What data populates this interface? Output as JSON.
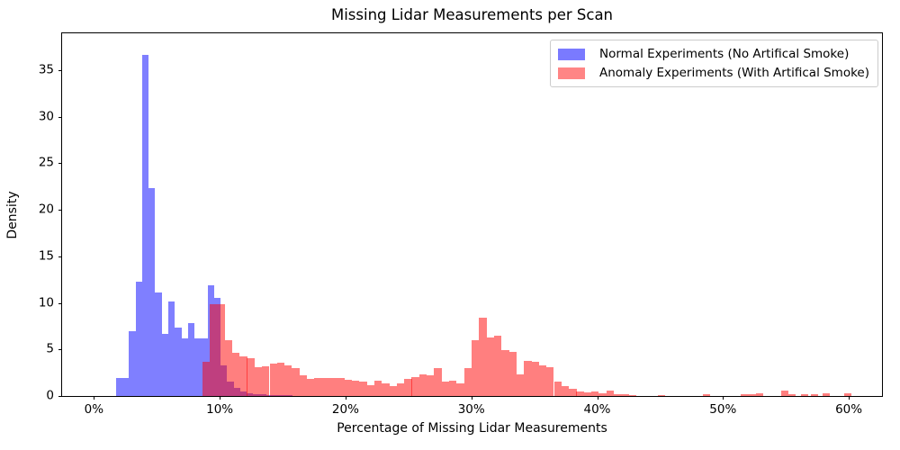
{
  "chart_data": {
    "type": "histogram",
    "title": "Missing Lidar Measurements per Scan",
    "xlabel": "Percentage of Missing Lidar Measurements",
    "ylabel": "Density",
    "xlim": [
      -2.53,
      62.64
    ],
    "ylim": [
      0,
      38.94
    ],
    "grid": false,
    "xticks": [
      {
        "value": 0,
        "label": "0%"
      },
      {
        "value": 10,
        "label": "10%"
      },
      {
        "value": 20,
        "label": "20%"
      },
      {
        "value": 30,
        "label": "30%"
      },
      {
        "value": 40,
        "label": "40%"
      },
      {
        "value": 50,
        "label": "50%"
      },
      {
        "value": 60,
        "label": "60%"
      }
    ],
    "yticks": [
      {
        "value": 0,
        "label": "0"
      },
      {
        "value": 5,
        "label": "5"
      },
      {
        "value": 10,
        "label": "10"
      },
      {
        "value": 15,
        "label": "15"
      },
      {
        "value": 20,
        "label": "20"
      },
      {
        "value": 25,
        "label": "25"
      },
      {
        "value": 30,
        "label": "30"
      },
      {
        "value": 35,
        "label": "35"
      }
    ],
    "legend": {
      "position": "upper right",
      "entries": [
        {
          "label": "Normal Experiments (No Artifical Smoke)",
          "swatch_color": "rgba(0,0,255,0.52)",
          "hex_on_white": "#8080ff"
        },
        {
          "label": "Anomaly Experiments (With Artifical Smoke)",
          "swatch_color": "rgba(255,0,0,0.48)",
          "hex_on_white": "#ff8080"
        }
      ]
    },
    "overlap_color_on_white": "#bf4080",
    "series": [
      {
        "name": "Normal Experiments (No Artifical Smoke)",
        "css_color": "rgba(0,0,255,0.5)",
        "bin_width": 0.52,
        "bars": [
          [
            1.75,
            1.9
          ],
          [
            2.27,
            1.9
          ],
          [
            2.79,
            7.0
          ],
          [
            3.31,
            12.3
          ],
          [
            3.83,
            36.6
          ],
          [
            4.35,
            22.3
          ],
          [
            4.87,
            11.1
          ],
          [
            5.39,
            6.7
          ],
          [
            5.91,
            10.1
          ],
          [
            6.43,
            7.3
          ],
          [
            6.95,
            6.2
          ],
          [
            7.47,
            7.8
          ],
          [
            7.99,
            6.2
          ],
          [
            8.51,
            6.2
          ],
          [
            9.03,
            11.9
          ],
          [
            9.55,
            10.5
          ],
          [
            10.07,
            3.3
          ],
          [
            10.59,
            1.5
          ],
          [
            11.11,
            0.85
          ],
          [
            11.63,
            0.45
          ],
          [
            12.15,
            0.27
          ],
          [
            12.67,
            0.18
          ],
          [
            13.19,
            0.15
          ],
          [
            13.71,
            0.12
          ],
          [
            14.23,
            0.12
          ],
          [
            14.75,
            0.12
          ],
          [
            15.27,
            0.1
          ]
        ]
      },
      {
        "name": "Anomaly Experiments (With Artifical Smoke)",
        "css_color": "rgba(255,0,0,0.5)",
        "bin_width": 0.595,
        "bars": [
          [
            8.6,
            3.7
          ],
          [
            9.2,
            9.9
          ],
          [
            9.79,
            9.9
          ],
          [
            10.39,
            6.0
          ],
          [
            10.98,
            4.6
          ],
          [
            11.58,
            4.3
          ],
          [
            12.17,
            4.1
          ],
          [
            12.77,
            3.1
          ],
          [
            13.36,
            3.2
          ],
          [
            13.96,
            3.5
          ],
          [
            14.55,
            3.6
          ],
          [
            15.15,
            3.3
          ],
          [
            15.74,
            3.0
          ],
          [
            16.34,
            2.2
          ],
          [
            16.93,
            1.8
          ],
          [
            17.53,
            1.9
          ],
          [
            18.12,
            1.95
          ],
          [
            18.72,
            1.95
          ],
          [
            19.31,
            1.9
          ],
          [
            19.91,
            1.7
          ],
          [
            20.5,
            1.6
          ],
          [
            21.1,
            1.5
          ],
          [
            21.69,
            1.2
          ],
          [
            22.29,
            1.6
          ],
          [
            22.88,
            1.4
          ],
          [
            23.48,
            1.1
          ],
          [
            24.07,
            1.4
          ],
          [
            24.67,
            1.8
          ],
          [
            25.26,
            2.0
          ],
          [
            25.86,
            2.3
          ],
          [
            26.45,
            2.2
          ],
          [
            27.05,
            3.0
          ],
          [
            27.64,
            1.5
          ],
          [
            28.24,
            1.6
          ],
          [
            28.83,
            1.4
          ],
          [
            29.43,
            3.0
          ],
          [
            30.02,
            6.0
          ],
          [
            30.62,
            8.4
          ],
          [
            31.21,
            6.3
          ],
          [
            31.81,
            6.5
          ],
          [
            32.4,
            4.9
          ],
          [
            33.0,
            4.7
          ],
          [
            33.59,
            2.3
          ],
          [
            34.19,
            3.8
          ],
          [
            34.78,
            3.7
          ],
          [
            35.38,
            3.3
          ],
          [
            35.97,
            3.1
          ],
          [
            36.57,
            1.5
          ],
          [
            37.16,
            1.1
          ],
          [
            37.76,
            0.75
          ],
          [
            38.35,
            0.5
          ],
          [
            38.95,
            0.4
          ],
          [
            39.54,
            0.5
          ],
          [
            40.14,
            0.25
          ],
          [
            40.73,
            0.6
          ],
          [
            41.33,
            0.2
          ],
          [
            41.92,
            0.15
          ],
          [
            42.52,
            0.1
          ],
          [
            44.8,
            0.1
          ],
          [
            48.4,
            0.16
          ],
          [
            51.4,
            0.2
          ],
          [
            52.0,
            0.22
          ],
          [
            52.6,
            0.25
          ],
          [
            54.6,
            0.55
          ],
          [
            55.2,
            0.15
          ],
          [
            56.2,
            0.2
          ],
          [
            57.0,
            0.2
          ],
          [
            57.9,
            0.25
          ],
          [
            59.6,
            0.3
          ]
        ]
      }
    ]
  }
}
